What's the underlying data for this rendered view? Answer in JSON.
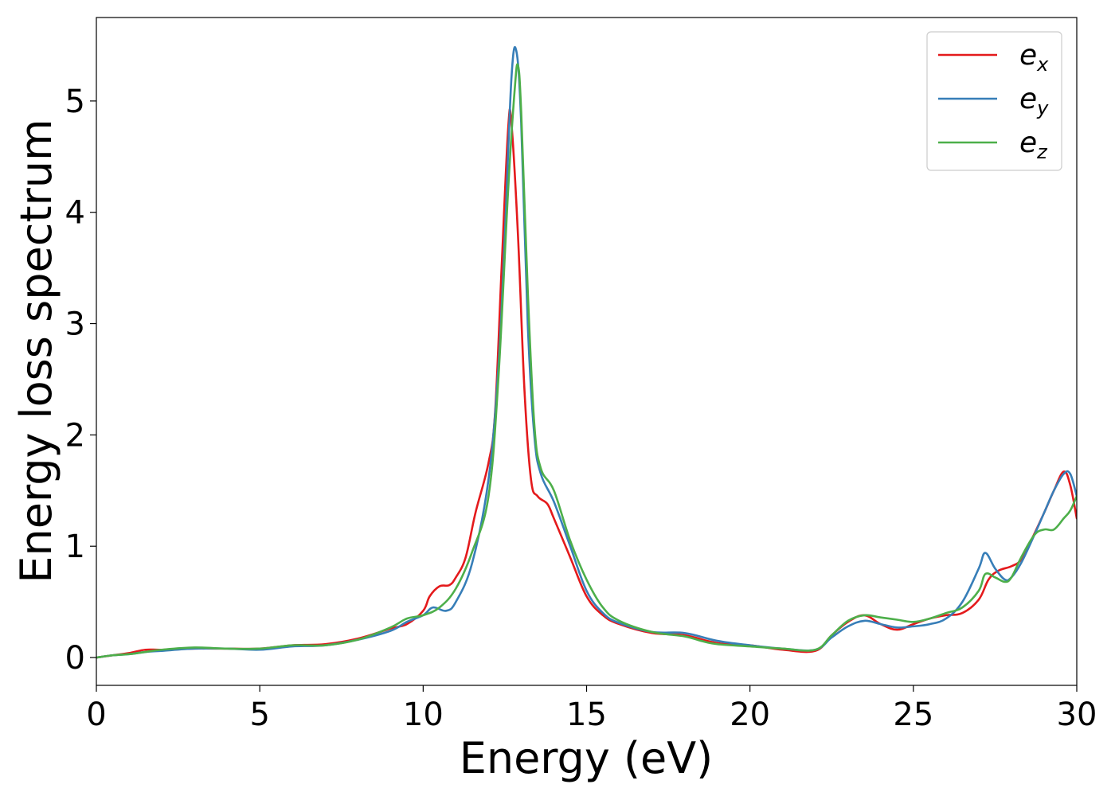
{
  "chart_data": {
    "type": "line",
    "title": "",
    "xlabel": "Energy (eV)",
    "ylabel": "Energy loss spectrum",
    "xlim": [
      0,
      30
    ],
    "ylim": [
      -0.25,
      5.75
    ],
    "xticks": [
      0,
      5,
      10,
      15,
      20,
      25,
      30
    ],
    "xtick_labels": [
      "0",
      "5",
      "10",
      "15",
      "20",
      "25",
      "30"
    ],
    "yticks": [
      0,
      1,
      2,
      3,
      4,
      5
    ],
    "ytick_labels": [
      "0",
      "1",
      "2",
      "3",
      "4",
      "5"
    ],
    "grid": false,
    "legend_position": "top-right",
    "series": [
      {
        "name": "e_x",
        "legend_base": "e",
        "legend_sub": "x",
        "color": "#e41a1c",
        "x": [
          0,
          0.5,
          1.0,
          1.5,
          2.0,
          3.0,
          4.0,
          5.0,
          6.0,
          7.0,
          8.0,
          9.0,
          9.5,
          10.0,
          10.2,
          10.5,
          10.8,
          11.0,
          11.3,
          11.6,
          12.0,
          12.2,
          12.4,
          12.6,
          12.7,
          12.9,
          13.1,
          13.3,
          13.5,
          13.8,
          14.0,
          14.5,
          15.0,
          15.5,
          16.0,
          17.0,
          18.0,
          19.0,
          20.0,
          21.0,
          22.0,
          22.5,
          23.0,
          23.5,
          24.0,
          24.5,
          25.0,
          25.5,
          26.0,
          26.5,
          27.0,
          27.3,
          27.6,
          28.0,
          28.3,
          28.6,
          29.0,
          29.3,
          29.6,
          29.8,
          30.0
        ],
        "y": [
          0,
          0.02,
          0.04,
          0.07,
          0.07,
          0.08,
          0.08,
          0.08,
          0.11,
          0.12,
          0.17,
          0.26,
          0.3,
          0.42,
          0.55,
          0.64,
          0.65,
          0.72,
          0.9,
          1.3,
          1.75,
          2.2,
          3.5,
          4.75,
          4.8,
          3.8,
          2.4,
          1.6,
          1.45,
          1.38,
          1.25,
          0.9,
          0.55,
          0.38,
          0.3,
          0.22,
          0.2,
          0.13,
          0.11,
          0.07,
          0.06,
          0.2,
          0.32,
          0.38,
          0.3,
          0.25,
          0.3,
          0.35,
          0.38,
          0.4,
          0.52,
          0.7,
          0.78,
          0.82,
          0.88,
          1.05,
          1.3,
          1.5,
          1.67,
          1.55,
          1.25
        ]
      },
      {
        "name": "e_y",
        "legend_base": "e",
        "legend_sub": "y",
        "color": "#377eb8",
        "x": [
          0,
          0.5,
          1.0,
          1.5,
          2.0,
          3.0,
          4.0,
          5.0,
          6.0,
          7.0,
          8.0,
          9.0,
          9.5,
          10.0,
          10.3,
          10.7,
          11.0,
          11.5,
          12.0,
          12.3,
          12.5,
          12.7,
          12.85,
          13.0,
          13.2,
          13.4,
          13.6,
          14.0,
          14.5,
          15.0,
          15.5,
          16.0,
          17.0,
          18.0,
          19.0,
          20.0,
          21.0,
          22.0,
          22.5,
          23.0,
          23.5,
          24.0,
          24.5,
          25.0,
          25.5,
          26.0,
          26.5,
          27.0,
          27.2,
          27.5,
          27.8,
          28.0,
          28.3,
          28.7,
          29.0,
          29.3,
          29.6,
          29.8,
          30.0
        ],
        "y": [
          0,
          0.02,
          0.03,
          0.05,
          0.06,
          0.08,
          0.08,
          0.07,
          0.1,
          0.11,
          0.16,
          0.24,
          0.32,
          0.38,
          0.45,
          0.42,
          0.5,
          0.85,
          1.6,
          2.6,
          3.8,
          5.2,
          5.45,
          4.8,
          3.0,
          2.0,
          1.65,
          1.4,
          1.0,
          0.6,
          0.4,
          0.31,
          0.23,
          0.22,
          0.15,
          0.11,
          0.08,
          0.07,
          0.18,
          0.28,
          0.33,
          0.3,
          0.27,
          0.28,
          0.3,
          0.35,
          0.5,
          0.8,
          0.94,
          0.8,
          0.7,
          0.72,
          0.85,
          1.1,
          1.3,
          1.5,
          1.65,
          1.65,
          1.45
        ]
      },
      {
        "name": "e_z",
        "legend_base": "e",
        "legend_sub": "z",
        "color": "#4daf4a",
        "x": [
          0,
          0.5,
          1.0,
          1.5,
          2.0,
          3.0,
          4.0,
          5.0,
          6.0,
          7.0,
          8.0,
          9.0,
          9.5,
          10.0,
          10.5,
          11.0,
          11.5,
          12.0,
          12.3,
          12.6,
          12.8,
          12.9,
          13.0,
          13.2,
          13.4,
          13.6,
          14.0,
          14.5,
          15.0,
          15.5,
          16.0,
          17.0,
          18.0,
          18.5,
          19.0,
          20.0,
          21.0,
          22.0,
          22.5,
          23.0,
          23.5,
          24.0,
          24.5,
          25.0,
          25.5,
          26.0,
          26.5,
          27.0,
          27.2,
          27.5,
          27.8,
          28.0,
          28.3,
          28.7,
          29.0,
          29.3,
          29.6,
          29.8,
          30.0
        ],
        "y": [
          0,
          0.02,
          0.03,
          0.05,
          0.07,
          0.09,
          0.08,
          0.08,
          0.11,
          0.11,
          0.16,
          0.27,
          0.35,
          0.38,
          0.45,
          0.62,
          0.95,
          1.45,
          2.5,
          4.2,
          5.1,
          5.32,
          4.9,
          3.3,
          2.1,
          1.7,
          1.5,
          1.05,
          0.7,
          0.45,
          0.33,
          0.23,
          0.19,
          0.15,
          0.12,
          0.1,
          0.08,
          0.07,
          0.2,
          0.33,
          0.38,
          0.36,
          0.34,
          0.32,
          0.35,
          0.4,
          0.45,
          0.6,
          0.75,
          0.72,
          0.68,
          0.72,
          0.9,
          1.1,
          1.15,
          1.15,
          1.25,
          1.32,
          1.45
        ]
      }
    ]
  }
}
